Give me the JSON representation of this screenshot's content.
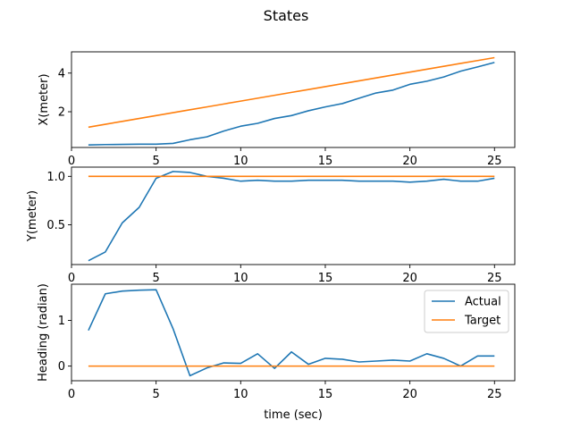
{
  "figure": {
    "title": "States"
  },
  "chart_data": [
    {
      "type": "line",
      "ylabel": "X(meter)",
      "xlabel": "",
      "xlim": [
        0,
        26.2
      ],
      "ylim": [
        0.15,
        5.1
      ],
      "xticks": [
        0,
        5,
        10,
        15,
        20,
        25
      ],
      "yticks": [
        2,
        4
      ],
      "x": [
        1,
        2,
        3,
        4,
        5,
        6,
        7,
        8,
        9,
        10,
        11,
        12,
        13,
        14,
        15,
        16,
        17,
        18,
        19,
        20,
        21,
        22,
        23,
        24,
        25
      ],
      "series": [
        {
          "name": "Actual",
          "color": "#1f77b4",
          "values": [
            0.28,
            0.3,
            0.31,
            0.32,
            0.32,
            0.36,
            0.55,
            0.7,
            1.0,
            1.25,
            1.4,
            1.65,
            1.8,
            2.05,
            2.25,
            2.42,
            2.7,
            2.97,
            3.12,
            3.42,
            3.58,
            3.8,
            4.1,
            4.32,
            4.55
          ]
        },
        {
          "name": "Target",
          "color": "#ff7f0e",
          "values": [
            1.2,
            1.35,
            1.5,
            1.65,
            1.8,
            1.95,
            2.1,
            2.25,
            2.4,
            2.55,
            2.7,
            2.85,
            3.0,
            3.15,
            3.3,
            3.45,
            3.6,
            3.75,
            3.9,
            4.05,
            4.2,
            4.35,
            4.5,
            4.65,
            4.8
          ]
        }
      ]
    },
    {
      "type": "line",
      "ylabel": "Y(meter)",
      "xlabel": "",
      "xlim": [
        0,
        26.2
      ],
      "ylim": [
        0.09,
        1.095
      ],
      "xticks": [
        0,
        5,
        10,
        15,
        20,
        25
      ],
      "yticks": [
        0.5,
        1.0
      ],
      "ytick_labels": [
        "0.5",
        "1.0"
      ],
      "x": [
        1,
        2,
        3,
        4,
        5,
        6,
        7,
        8,
        9,
        10,
        11,
        12,
        13,
        14,
        15,
        16,
        17,
        18,
        19,
        20,
        21,
        22,
        23,
        24,
        25
      ],
      "series": [
        {
          "name": "Actual",
          "color": "#1f77b4",
          "values": [
            0.13,
            0.22,
            0.52,
            0.68,
            0.98,
            1.05,
            1.04,
            1.0,
            0.98,
            0.95,
            0.96,
            0.95,
            0.95,
            0.96,
            0.96,
            0.96,
            0.95,
            0.95,
            0.95,
            0.94,
            0.95,
            0.97,
            0.95,
            0.95,
            0.98
          ]
        },
        {
          "name": "Target",
          "color": "#ff7f0e",
          "values": [
            1,
            1,
            1,
            1,
            1,
            1,
            1,
            1,
            1,
            1,
            1,
            1,
            1,
            1,
            1,
            1,
            1,
            1,
            1,
            1,
            1,
            1,
            1,
            1,
            1
          ]
        }
      ]
    },
    {
      "type": "line",
      "ylabel": "Heading (radian)",
      "xlabel": "time (sec)",
      "xlim": [
        0,
        26.2
      ],
      "ylim": [
        -0.32,
        1.79
      ],
      "xticks": [
        0,
        5,
        10,
        15,
        20,
        25
      ],
      "yticks": [
        0,
        1
      ],
      "legend": {
        "placement": "top-right",
        "entries": [
          "Actual",
          "Target"
        ]
      },
      "x": [
        1,
        2,
        3,
        4,
        5,
        6,
        7,
        8,
        9,
        10,
        11,
        12,
        13,
        14,
        15,
        16,
        17,
        18,
        19,
        20,
        21,
        22,
        23,
        24,
        25
      ],
      "series": [
        {
          "name": "Actual",
          "color": "#1f77b4",
          "values": [
            0.78,
            1.58,
            1.64,
            1.66,
            1.67,
            0.82,
            -0.21,
            -0.04,
            0.07,
            0.06,
            0.27,
            -0.05,
            0.31,
            0.04,
            0.17,
            0.15,
            0.09,
            0.11,
            0.13,
            0.11,
            0.27,
            0.17,
            0.0,
            0.22,
            0.22
          ]
        },
        {
          "name": "Target",
          "color": "#ff7f0e",
          "values": [
            0,
            0,
            0,
            0,
            0,
            0,
            0,
            0,
            0,
            0,
            0,
            0,
            0,
            0,
            0,
            0,
            0,
            0,
            0,
            0,
            0,
            0,
            0,
            0,
            0
          ]
        }
      ]
    }
  ]
}
